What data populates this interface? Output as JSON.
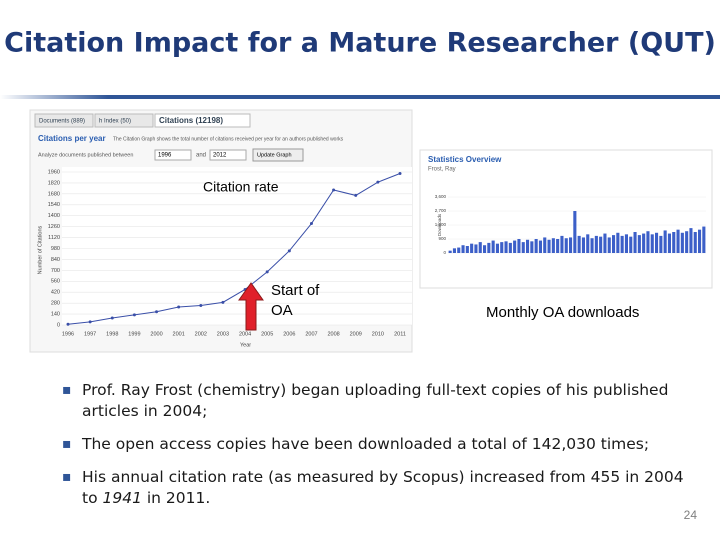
{
  "title": "Citation Impact for a Mature Researcher (QUT)",
  "left_image": {
    "tabs": [
      "Documents (889)",
      "h Index (50)",
      "Citations (12198)"
    ],
    "heading": "Citations per year",
    "description": "The Citation Graph shows the total number of citations received per year for an authors published works",
    "range_label": "Analyze documents published between",
    "range_from": "1996",
    "range_and": "and",
    "range_to": "2012",
    "button": "Update Graph",
    "chart_data": {
      "type": "line",
      "ylabel": "Number of Citations",
      "xlabel": "Year",
      "categories": [
        "1996",
        "1997",
        "1998",
        "1999",
        "2000",
        "2001",
        "2002",
        "2003",
        "2004",
        "2005",
        "2006",
        "2007",
        "2008",
        "2009",
        "2010",
        "2011"
      ],
      "series": [
        {
          "name": "Citations",
          "color": "#3a4fa8",
          "values": [
            10,
            40,
            90,
            130,
            170,
            230,
            250,
            290,
            455,
            680,
            950,
            1300,
            1730,
            1660,
            1830,
            1941
          ]
        }
      ],
      "ylim": [
        0,
        1960
      ],
      "yticks": [
        0,
        140,
        280,
        420,
        560,
        700,
        840,
        980,
        1120,
        1260,
        1400,
        1540,
        1680,
        1820,
        1960
      ],
      "grid": true
    }
  },
  "right_image": {
    "title": "Statistics Overview",
    "subtitle": "Frost, Ray",
    "chart_data": {
      "type": "bar",
      "ylabel": "Downloads",
      "color": "#3c5fc8",
      "values": [
        150,
        300,
        350,
        500,
        450,
        600,
        550,
        700,
        500,
        650,
        800,
        600,
        700,
        750,
        650,
        800,
        900,
        700,
        850,
        750,
        900,
        800,
        1000,
        850,
        950,
        900,
        1100,
        950,
        1000,
        2700,
        1100,
        1000,
        1200,
        950,
        1100,
        1050,
        1250,
        1000,
        1150,
        1300,
        1100,
        1200,
        1050,
        1350,
        1150,
        1250,
        1400,
        1200,
        1300,
        1100,
        1450,
        1250,
        1350,
        1500,
        1300,
        1400,
        1600,
        1350,
        1500,
        1700
      ],
      "ylim": [
        0,
        3600
      ],
      "yticks": [
        0,
        {
          "value": 900,
          "label": "900"
        },
        {
          "value": 1800,
          "label": "1,800"
        },
        {
          "value": 2700,
          "label": "2,700"
        },
        {
          "value": 3600,
          "label": "3,600"
        }
      ]
    }
  },
  "annotations": {
    "citation_rate": "Citation rate",
    "start_line1": "Start of",
    "start_line2": "OA",
    "downloads": "Monthly OA downloads"
  },
  "bullets": [
    [
      "Prof. Ray Frost (chemistry) began uploading full-text copies of his published articles in 2004;"
    ],
    [
      "The open access copies have been downloaded a total of  142,030 times;"
    ],
    [
      "His annual citation rate (as measured by Scopus) increased from 455 in 2004 to ",
      "1941",
      " in 2011."
    ]
  ],
  "page_number": "24"
}
